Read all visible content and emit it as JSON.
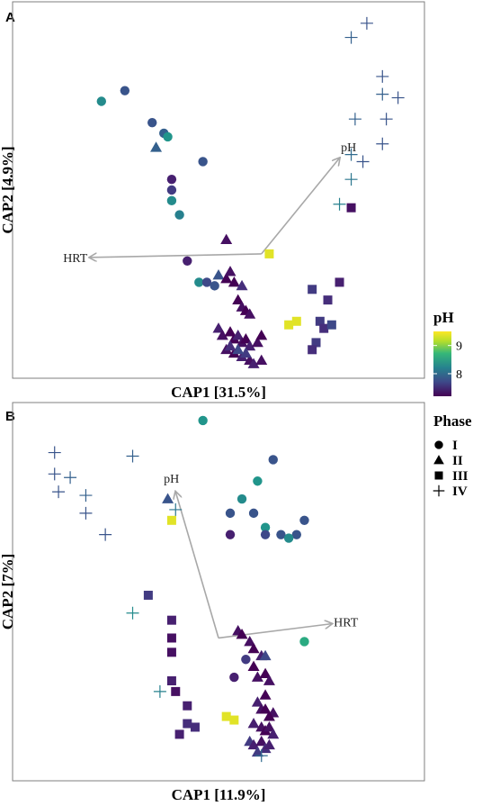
{
  "chart_data": [
    {
      "panel": "A",
      "type": "scatter",
      "xlabel": "CAP1   [31.5%]",
      "ylabel": "CAP2   [4.9%]",
      "xlim": [
        0,
        100
      ],
      "ylim": [
        0,
        100
      ],
      "vectors": [
        {
          "label": "pH",
          "x": 81,
          "y": 59
        },
        {
          "label": "HRT",
          "x": 17,
          "y": 31
        }
      ],
      "origin": [
        61,
        32
      ],
      "points": [
        {
          "x": 20,
          "y": 75,
          "phase": "I",
          "ph": 8.3
        },
        {
          "x": 26,
          "y": 78,
          "phase": "I",
          "ph": 7.8
        },
        {
          "x": 33,
          "y": 69,
          "phase": "I",
          "ph": 7.8
        },
        {
          "x": 36,
          "y": 66,
          "phase": "I",
          "ph": 7.9
        },
        {
          "x": 37,
          "y": 65,
          "phase": "I",
          "ph": 8.4
        },
        {
          "x": 46,
          "y": 58,
          "phase": "I",
          "ph": 7.8
        },
        {
          "x": 38,
          "y": 53,
          "phase": "I",
          "ph": 7.4
        },
        {
          "x": 38,
          "y": 50,
          "phase": "I",
          "ph": 7.6
        },
        {
          "x": 38,
          "y": 47,
          "phase": "I",
          "ph": 8.3
        },
        {
          "x": 40,
          "y": 43,
          "phase": "I",
          "ph": 8.2
        },
        {
          "x": 42,
          "y": 30,
          "phase": "I",
          "ph": 7.4
        },
        {
          "x": 45,
          "y": 24,
          "phase": "I",
          "ph": 8.3
        },
        {
          "x": 47,
          "y": 24,
          "phase": "I",
          "ph": 7.7
        },
        {
          "x": 49,
          "y": 23,
          "phase": "I",
          "ph": 7.8
        },
        {
          "x": 34,
          "y": 62,
          "phase": "II",
          "ph": 7.9
        },
        {
          "x": 52,
          "y": 36,
          "phase": "II",
          "ph": 7.3
        },
        {
          "x": 50,
          "y": 26,
          "phase": "II",
          "ph": 7.8
        },
        {
          "x": 52,
          "y": 25,
          "phase": "II",
          "ph": 7.2
        },
        {
          "x": 53,
          "y": 27,
          "phase": "II",
          "ph": 7.3
        },
        {
          "x": 54,
          "y": 24,
          "phase": "II",
          "ph": 7.2
        },
        {
          "x": 56,
          "y": 23,
          "phase": "II",
          "ph": 7.5
        },
        {
          "x": 55,
          "y": 19,
          "phase": "II",
          "ph": 7.2
        },
        {
          "x": 56,
          "y": 17,
          "phase": "II",
          "ph": 7.3
        },
        {
          "x": 57,
          "y": 16,
          "phase": "II",
          "ph": 7.2
        },
        {
          "x": 58,
          "y": 15,
          "phase": "II",
          "ph": 7.3
        },
        {
          "x": 50,
          "y": 11,
          "phase": "II",
          "ph": 7.4
        },
        {
          "x": 51,
          "y": 9,
          "phase": "II",
          "ph": 7.3
        },
        {
          "x": 53,
          "y": 10,
          "phase": "II",
          "ph": 7.2
        },
        {
          "x": 54,
          "y": 8,
          "phase": "II",
          "ph": 7.2
        },
        {
          "x": 55,
          "y": 9,
          "phase": "II",
          "ph": 7.4
        },
        {
          "x": 56,
          "y": 7,
          "phase": "II",
          "ph": 7.3
        },
        {
          "x": 57,
          "y": 8,
          "phase": "II",
          "ph": 7.2
        },
        {
          "x": 58,
          "y": 6,
          "phase": "II",
          "ph": 7.4
        },
        {
          "x": 60,
          "y": 7,
          "phase": "II",
          "ph": 7.3
        },
        {
          "x": 61,
          "y": 9,
          "phase": "II",
          "ph": 7.2
        },
        {
          "x": 52,
          "y": 5,
          "phase": "II",
          "ph": 7.3
        },
        {
          "x": 54,
          "y": 4,
          "phase": "II",
          "ph": 7.2
        },
        {
          "x": 56,
          "y": 3,
          "phase": "II",
          "ph": 7.4
        },
        {
          "x": 58,
          "y": 2,
          "phase": "II",
          "ph": 7.3
        },
        {
          "x": 59,
          "y": 1,
          "phase": "II",
          "ph": 7.4
        },
        {
          "x": 61,
          "y": 2,
          "phase": "II",
          "ph": 7.3
        },
        {
          "x": 57,
          "y": 4,
          "phase": "II",
          "ph": 7.6
        },
        {
          "x": 55,
          "y": 5,
          "phase": "II",
          "ph": 7.7
        },
        {
          "x": 53,
          "y": 6,
          "phase": "II",
          "ph": 7.5
        },
        {
          "x": 63,
          "y": 32,
          "phase": "III",
          "ph": 9.4
        },
        {
          "x": 68,
          "y": 12,
          "phase": "III",
          "ph": 9.4
        },
        {
          "x": 70,
          "y": 13,
          "phase": "III",
          "ph": 9.4
        },
        {
          "x": 74,
          "y": 22,
          "phase": "III",
          "ph": 7.6
        },
        {
          "x": 81,
          "y": 24,
          "phase": "III",
          "ph": 7.4
        },
        {
          "x": 78,
          "y": 19,
          "phase": "III",
          "ph": 7.5
        },
        {
          "x": 76,
          "y": 13,
          "phase": "III",
          "ph": 7.6
        },
        {
          "x": 77,
          "y": 11,
          "phase": "III",
          "ph": 7.5
        },
        {
          "x": 79,
          "y": 12,
          "phase": "III",
          "ph": 7.7
        },
        {
          "x": 75,
          "y": 7,
          "phase": "III",
          "ph": 7.6
        },
        {
          "x": 74,
          "y": 5,
          "phase": "III",
          "ph": 7.5
        },
        {
          "x": 84,
          "y": 45,
          "phase": "III",
          "ph": 7.3
        },
        {
          "x": 88,
          "y": 97,
          "phase": "IV",
          "ph": 7.8
        },
        {
          "x": 84,
          "y": 93,
          "phase": "IV",
          "ph": 7.9
        },
        {
          "x": 92,
          "y": 82,
          "phase": "IV",
          "ph": 7.8
        },
        {
          "x": 92,
          "y": 77,
          "phase": "IV",
          "ph": 7.9
        },
        {
          "x": 96,
          "y": 76,
          "phase": "IV",
          "ph": 7.8
        },
        {
          "x": 85,
          "y": 70,
          "phase": "IV",
          "ph": 7.9
        },
        {
          "x": 93,
          "y": 70,
          "phase": "IV",
          "ph": 7.8
        },
        {
          "x": 92,
          "y": 63,
          "phase": "IV",
          "ph": 7.8
        },
        {
          "x": 84,
          "y": 60,
          "phase": "IV",
          "ph": 8.0
        },
        {
          "x": 87,
          "y": 58,
          "phase": "IV",
          "ph": 7.8
        },
        {
          "x": 84,
          "y": 53,
          "phase": "IV",
          "ph": 8.1
        },
        {
          "x": 81,
          "y": 46,
          "phase": "IV",
          "ph": 8.2
        }
      ]
    },
    {
      "panel": "B",
      "type": "scatter",
      "xlabel": "CAP1   [11.9%]",
      "ylabel": "CAP2   [7%]",
      "xlim": [
        0,
        100
      ],
      "ylim": [
        0,
        100
      ],
      "vectors": [
        {
          "label": "pH",
          "x": 39,
          "y": 78
        },
        {
          "label": "HRT",
          "x": 79,
          "y": 41
        }
      ],
      "origin": [
        50,
        37
      ],
      "points": [
        {
          "x": 46,
          "y": 98,
          "phase": "I",
          "ph": 8.4
        },
        {
          "x": 64,
          "y": 87,
          "phase": "I",
          "ph": 7.8
        },
        {
          "x": 60,
          "y": 81,
          "phase": "I",
          "ph": 8.4
        },
        {
          "x": 56,
          "y": 76,
          "phase": "I",
          "ph": 8.3
        },
        {
          "x": 53,
          "y": 72,
          "phase": "I",
          "ph": 7.8
        },
        {
          "x": 59,
          "y": 72,
          "phase": "I",
          "ph": 7.8
        },
        {
          "x": 72,
          "y": 70,
          "phase": "I",
          "ph": 7.8
        },
        {
          "x": 62,
          "y": 68,
          "phase": "I",
          "ph": 8.4
        },
        {
          "x": 53,
          "y": 66,
          "phase": "I",
          "ph": 7.4
        },
        {
          "x": 62,
          "y": 66,
          "phase": "I",
          "ph": 7.7
        },
        {
          "x": 66,
          "y": 66,
          "phase": "I",
          "ph": 7.8
        },
        {
          "x": 70,
          "y": 66,
          "phase": "I",
          "ph": 7.8
        },
        {
          "x": 68,
          "y": 65,
          "phase": "I",
          "ph": 8.3
        },
        {
          "x": 72,
          "y": 36,
          "phase": "I",
          "ph": 8.6
        },
        {
          "x": 54,
          "y": 26,
          "phase": "I",
          "ph": 7.4
        },
        {
          "x": 57,
          "y": 31,
          "phase": "I",
          "ph": 7.6
        },
        {
          "x": 37,
          "y": 76,
          "phase": "II",
          "ph": 7.8
        },
        {
          "x": 55,
          "y": 39,
          "phase": "II",
          "ph": 7.3
        },
        {
          "x": 56,
          "y": 38,
          "phase": "II",
          "ph": 7.2
        },
        {
          "x": 58,
          "y": 36,
          "phase": "II",
          "ph": 7.3
        },
        {
          "x": 59,
          "y": 34,
          "phase": "II",
          "ph": 7.2
        },
        {
          "x": 61,
          "y": 32,
          "phase": "II",
          "ph": 7.4
        },
        {
          "x": 62,
          "y": 32,
          "phase": "II",
          "ph": 7.7
        },
        {
          "x": 59,
          "y": 29,
          "phase": "II",
          "ph": 7.2
        },
        {
          "x": 60,
          "y": 26,
          "phase": "II",
          "ph": 7.3
        },
        {
          "x": 62,
          "y": 27,
          "phase": "II",
          "ph": 7.2
        },
        {
          "x": 63,
          "y": 25,
          "phase": "II",
          "ph": 7.3
        },
        {
          "x": 62,
          "y": 21,
          "phase": "II",
          "ph": 7.2
        },
        {
          "x": 60,
          "y": 19,
          "phase": "II",
          "ph": 7.4
        },
        {
          "x": 61,
          "y": 17,
          "phase": "II",
          "ph": 7.3
        },
        {
          "x": 62,
          "y": 17,
          "phase": "II",
          "ph": 7.2
        },
        {
          "x": 64,
          "y": 16,
          "phase": "II",
          "ph": 7.3
        },
        {
          "x": 63,
          "y": 15,
          "phase": "II",
          "ph": 7.2
        },
        {
          "x": 59,
          "y": 13,
          "phase": "II",
          "ph": 7.4
        },
        {
          "x": 61,
          "y": 12,
          "phase": "II",
          "ph": 7.3
        },
        {
          "x": 62,
          "y": 11,
          "phase": "II",
          "ph": 7.2
        },
        {
          "x": 63,
          "y": 12,
          "phase": "II",
          "ph": 7.3
        },
        {
          "x": 64,
          "y": 10,
          "phase": "II",
          "ph": 7.4
        },
        {
          "x": 58,
          "y": 8,
          "phase": "II",
          "ph": 7.6
        },
        {
          "x": 59,
          "y": 7,
          "phase": "II",
          "ph": 7.4
        },
        {
          "x": 61,
          "y": 8,
          "phase": "II",
          "ph": 7.3
        },
        {
          "x": 62,
          "y": 6,
          "phase": "II",
          "ph": 7.5
        },
        {
          "x": 60,
          "y": 5,
          "phase": "II",
          "ph": 7.6
        },
        {
          "x": 63,
          "y": 7,
          "phase": "II",
          "ph": 7.4
        },
        {
          "x": 38,
          "y": 70,
          "phase": "III",
          "ph": 9.4
        },
        {
          "x": 32,
          "y": 49,
          "phase": "III",
          "ph": 7.6
        },
        {
          "x": 38,
          "y": 42,
          "phase": "III",
          "ph": 7.4
        },
        {
          "x": 38,
          "y": 37,
          "phase": "III",
          "ph": 7.3
        },
        {
          "x": 38,
          "y": 33,
          "phase": "III",
          "ph": 7.3
        },
        {
          "x": 38,
          "y": 25,
          "phase": "III",
          "ph": 7.4
        },
        {
          "x": 39,
          "y": 22,
          "phase": "III",
          "ph": 7.3
        },
        {
          "x": 42,
          "y": 18,
          "phase": "III",
          "ph": 7.4
        },
        {
          "x": 42,
          "y": 13,
          "phase": "III",
          "ph": 7.5
        },
        {
          "x": 44,
          "y": 12,
          "phase": "III",
          "ph": 7.5
        },
        {
          "x": 40,
          "y": 10,
          "phase": "III",
          "ph": 7.4
        },
        {
          "x": 52,
          "y": 15,
          "phase": "III",
          "ph": 9.4
        },
        {
          "x": 54,
          "y": 14,
          "phase": "III",
          "ph": 9.4
        },
        {
          "x": 8,
          "y": 89,
          "phase": "IV",
          "ph": 7.8
        },
        {
          "x": 28,
          "y": 88,
          "phase": "IV",
          "ph": 7.9
        },
        {
          "x": 8,
          "y": 83,
          "phase": "IV",
          "ph": 7.8
        },
        {
          "x": 12,
          "y": 82,
          "phase": "IV",
          "ph": 7.9
        },
        {
          "x": 9,
          "y": 78,
          "phase": "IV",
          "ph": 7.8
        },
        {
          "x": 16,
          "y": 77,
          "phase": "IV",
          "ph": 7.9
        },
        {
          "x": 16,
          "y": 72,
          "phase": "IV",
          "ph": 7.8
        },
        {
          "x": 21,
          "y": 66,
          "phase": "IV",
          "ph": 7.8
        },
        {
          "x": 39,
          "y": 73,
          "phase": "IV",
          "ph": 8.1
        },
        {
          "x": 28,
          "y": 44,
          "phase": "IV",
          "ph": 8.3
        },
        {
          "x": 35,
          "y": 22,
          "phase": "IV",
          "ph": 8.2
        },
        {
          "x": 61,
          "y": 4,
          "phase": "IV",
          "ph": 8.0
        }
      ]
    }
  ],
  "legend": {
    "color_title": "pH",
    "color_ticks": [
      {
        "label": "9",
        "value": 9
      },
      {
        "label": "8",
        "value": 8
      }
    ],
    "color_range": [
      7.2,
      9.5
    ],
    "phase_title": "Phase",
    "phases": [
      {
        "label": "I",
        "shape": "circle"
      },
      {
        "label": "II",
        "shape": "triangle"
      },
      {
        "label": "III",
        "shape": "square"
      },
      {
        "label": "IV",
        "shape": "plus"
      }
    ]
  },
  "panel_letters": [
    "A",
    "B"
  ],
  "colors": {
    "viridis": [
      "#440154",
      "#482878",
      "#3e4989",
      "#31688e",
      "#26828e",
      "#1f9e89",
      "#35b779",
      "#6ece58",
      "#b5de2b",
      "#fde725"
    ],
    "vector": "#a8a8a8",
    "frame": "#7f7f7f"
  }
}
